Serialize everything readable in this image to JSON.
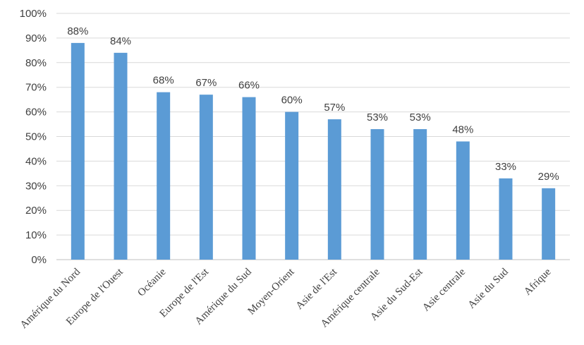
{
  "chart_data": {
    "type": "bar",
    "categories": [
      "Amérique du Nord",
      "Europe de l'Ouest",
      "Océanie",
      "Europe de l'Est",
      "Amérique du Sud",
      "Moyen-Orient",
      "Asie de l'Est",
      "Amérique centrale",
      "Asie du Sud-Est",
      "Asie centrale",
      "Asie du Sud",
      "Afrique"
    ],
    "values": [
      88,
      84,
      68,
      67,
      66,
      60,
      57,
      53,
      53,
      48,
      33,
      29
    ],
    "data_labels": [
      "88%",
      "84%",
      "68%",
      "67%",
      "66%",
      "60%",
      "57%",
      "53%",
      "53%",
      "48%",
      "33%",
      "29%"
    ],
    "y_ticks": [
      "0%",
      "10%",
      "20%",
      "30%",
      "40%",
      "50%",
      "60%",
      "70%",
      "80%",
      "90%",
      "100%"
    ],
    "ylim": [
      0,
      100
    ],
    "title": "",
    "xlabel": "",
    "ylabel": "",
    "grid": "horizontal",
    "legend": "none",
    "bar_color": "#5b9bd5"
  }
}
